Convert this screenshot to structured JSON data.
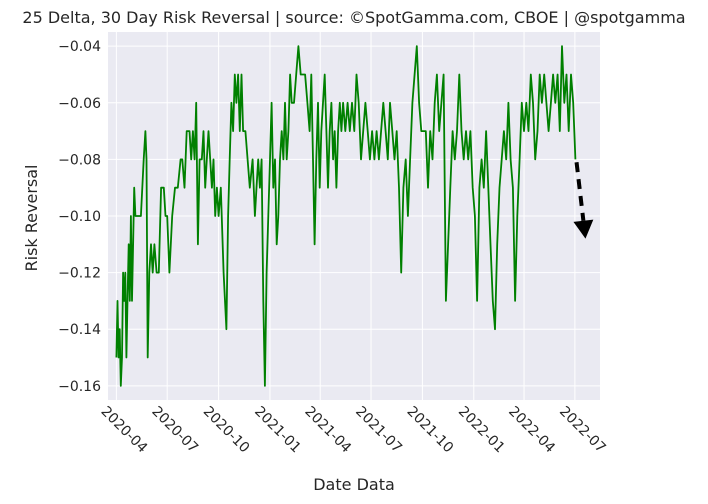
{
  "chart_data": {
    "type": "line",
    "title": "25 Delta, 30 Day Risk Reversal | source: ©SpotGamma.com, CBOE | @spotgamma",
    "xlabel": "Date Data",
    "ylabel": "Risk Reversal",
    "x_ticks": [
      "2020-04",
      "2020-07",
      "2020-10",
      "2021-01",
      "2021-04",
      "2021-07",
      "2021-10",
      "2022-01",
      "2022-04",
      "2022-07"
    ],
    "y_ticks": [
      "−0.04",
      "−0.06",
      "−0.08",
      "−0.10",
      "−0.12",
      "−0.14",
      "−0.16"
    ],
    "xlim": [
      "2020-03-17",
      "2022-08-15"
    ],
    "ylim": [
      -0.165,
      -0.035
    ],
    "grid": true,
    "series": [
      {
        "color": "#008000",
        "points": [
          [
            "2020-04-01",
            -0.15
          ],
          [
            "2020-04-03",
            -0.13
          ],
          [
            "2020-04-05",
            -0.15
          ],
          [
            "2020-04-07",
            -0.14
          ],
          [
            "2020-04-09",
            -0.16
          ],
          [
            "2020-04-11",
            -0.15
          ],
          [
            "2020-04-13",
            -0.12
          ],
          [
            "2020-04-15",
            -0.13
          ],
          [
            "2020-04-17",
            -0.12
          ],
          [
            "2020-04-19",
            -0.15
          ],
          [
            "2020-04-21",
            -0.13
          ],
          [
            "2020-04-23",
            -0.11
          ],
          [
            "2020-04-25",
            -0.13
          ],
          [
            "2020-04-27",
            -0.1
          ],
          [
            "2020-04-29",
            -0.13
          ],
          [
            "2020-05-01",
            -0.11
          ],
          [
            "2020-05-03",
            -0.09
          ],
          [
            "2020-05-05",
            -0.1
          ],
          [
            "2020-05-10",
            -0.1
          ],
          [
            "2020-05-15",
            -0.1
          ],
          [
            "2020-05-20",
            -0.08
          ],
          [
            "2020-05-23",
            -0.07
          ],
          [
            "2020-05-25",
            -0.08
          ],
          [
            "2020-05-27",
            -0.15
          ],
          [
            "2020-05-30",
            -0.12
          ],
          [
            "2020-06-02",
            -0.11
          ],
          [
            "2020-06-05",
            -0.12
          ],
          [
            "2020-06-08",
            -0.11
          ],
          [
            "2020-06-12",
            -0.12
          ],
          [
            "2020-06-16",
            -0.12
          ],
          [
            "2020-06-20",
            -0.09
          ],
          [
            "2020-06-25",
            -0.09
          ],
          [
            "2020-06-28",
            -0.1
          ],
          [
            "2020-07-01",
            -0.1
          ],
          [
            "2020-07-05",
            -0.12
          ],
          [
            "2020-07-10",
            -0.1
          ],
          [
            "2020-07-15",
            -0.09
          ],
          [
            "2020-07-20",
            -0.09
          ],
          [
            "2020-07-25",
            -0.08
          ],
          [
            "2020-07-28",
            -0.08
          ],
          [
            "2020-08-01",
            -0.09
          ],
          [
            "2020-08-05",
            -0.07
          ],
          [
            "2020-08-10",
            -0.07
          ],
          [
            "2020-08-13",
            -0.08
          ],
          [
            "2020-08-16",
            -0.07
          ],
          [
            "2020-08-19",
            -0.08
          ],
          [
            "2020-08-22",
            -0.06
          ],
          [
            "2020-08-25",
            -0.11
          ],
          [
            "2020-08-28",
            -0.08
          ],
          [
            "2020-09-01",
            -0.08
          ],
          [
            "2020-09-04",
            -0.07
          ],
          [
            "2020-09-07",
            -0.09
          ],
          [
            "2020-09-10",
            -0.08
          ],
          [
            "2020-09-13",
            -0.07
          ],
          [
            "2020-09-16",
            -0.08
          ],
          [
            "2020-09-19",
            -0.09
          ],
          [
            "2020-09-22",
            -0.08
          ],
          [
            "2020-09-25",
            -0.1
          ],
          [
            "2020-09-28",
            -0.09
          ],
          [
            "2020-10-01",
            -0.1
          ],
          [
            "2020-10-05",
            -0.09
          ],
          [
            "2020-10-10",
            -0.12
          ],
          [
            "2020-10-15",
            -0.14
          ],
          [
            "2020-10-18",
            -0.1
          ],
          [
            "2020-10-21",
            -0.08
          ],
          [
            "2020-10-24",
            -0.06
          ],
          [
            "2020-10-27",
            -0.07
          ],
          [
            "2020-10-30",
            -0.05
          ],
          [
            "2020-11-02",
            -0.06
          ],
          [
            "2020-11-05",
            -0.05
          ],
          [
            "2020-11-08",
            -0.07
          ],
          [
            "2020-11-11",
            -0.05
          ],
          [
            "2020-11-14",
            -0.07
          ],
          [
            "2020-11-18",
            -0.07
          ],
          [
            "2020-11-22",
            -0.08
          ],
          [
            "2020-11-26",
            -0.09
          ],
          [
            "2020-12-01",
            -0.08
          ],
          [
            "2020-12-05",
            -0.1
          ],
          [
            "2020-12-08",
            -0.09
          ],
          [
            "2020-12-11",
            -0.08
          ],
          [
            "2020-12-14",
            -0.09
          ],
          [
            "2020-12-17",
            -0.08
          ],
          [
            "2020-12-20",
            -0.13
          ],
          [
            "2020-12-23",
            -0.16
          ],
          [
            "2020-12-26",
            -0.12
          ],
          [
            "2020-12-29",
            -0.1
          ],
          [
            "2021-01-01",
            -0.08
          ],
          [
            "2021-01-04",
            -0.06
          ],
          [
            "2021-01-07",
            -0.09
          ],
          [
            "2021-01-10",
            -0.08
          ],
          [
            "2021-01-13",
            -0.11
          ],
          [
            "2021-01-16",
            -0.1
          ],
          [
            "2021-01-19",
            -0.08
          ],
          [
            "2021-01-22",
            -0.07
          ],
          [
            "2021-01-25",
            -0.08
          ],
          [
            "2021-01-28",
            -0.06
          ],
          [
            "2021-01-31",
            -0.08
          ],
          [
            "2021-02-03",
            -0.07
          ],
          [
            "2021-02-06",
            -0.05
          ],
          [
            "2021-02-09",
            -0.06
          ],
          [
            "2021-02-13",
            -0.06
          ],
          [
            "2021-02-17",
            -0.05
          ],
          [
            "2021-02-21",
            -0.04
          ],
          [
            "2021-02-25",
            -0.05
          ],
          [
            "2021-03-01",
            -0.05
          ],
          [
            "2021-03-05",
            -0.05
          ],
          [
            "2021-03-09",
            -0.06
          ],
          [
            "2021-03-13",
            -0.07
          ],
          [
            "2021-03-16",
            -0.05
          ],
          [
            "2021-03-19",
            -0.08
          ],
          [
            "2021-03-22",
            -0.11
          ],
          [
            "2021-03-25",
            -0.08
          ],
          [
            "2021-03-28",
            -0.06
          ],
          [
            "2021-03-31",
            -0.09
          ],
          [
            "2021-04-03",
            -0.07
          ],
          [
            "2021-04-06",
            -0.06
          ],
          [
            "2021-04-09",
            -0.05
          ],
          [
            "2021-04-12",
            -0.07
          ],
          [
            "2021-04-15",
            -0.09
          ],
          [
            "2021-04-18",
            -0.07
          ],
          [
            "2021-04-21",
            -0.06
          ],
          [
            "2021-04-24",
            -0.08
          ],
          [
            "2021-04-27",
            -0.07
          ],
          [
            "2021-04-30",
            -0.09
          ],
          [
            "2021-05-03",
            -0.07
          ],
          [
            "2021-05-06",
            -0.06
          ],
          [
            "2021-05-09",
            -0.07
          ],
          [
            "2021-05-12",
            -0.06
          ],
          [
            "2021-05-16",
            -0.07
          ],
          [
            "2021-05-20",
            -0.06
          ],
          [
            "2021-05-24",
            -0.07
          ],
          [
            "2021-05-28",
            -0.06
          ],
          [
            "2021-06-01",
            -0.07
          ],
          [
            "2021-06-05",
            -0.05
          ],
          [
            "2021-06-09",
            -0.06
          ],
          [
            "2021-06-13",
            -0.08
          ],
          [
            "2021-06-17",
            -0.07
          ],
          [
            "2021-06-21",
            -0.06
          ],
          [
            "2021-06-25",
            -0.07
          ],
          [
            "2021-06-29",
            -0.08
          ],
          [
            "2021-07-03",
            -0.07
          ],
          [
            "2021-07-07",
            -0.08
          ],
          [
            "2021-07-11",
            -0.07
          ],
          [
            "2021-07-15",
            -0.08
          ],
          [
            "2021-07-19",
            -0.07
          ],
          [
            "2021-07-23",
            -0.06
          ],
          [
            "2021-07-27",
            -0.07
          ],
          [
            "2021-07-31",
            -0.08
          ],
          [
            "2021-08-04",
            -0.06
          ],
          [
            "2021-08-08",
            -0.07
          ],
          [
            "2021-08-12",
            -0.08
          ],
          [
            "2021-08-16",
            -0.07
          ],
          [
            "2021-08-20",
            -0.09
          ],
          [
            "2021-08-24",
            -0.12
          ],
          [
            "2021-08-28",
            -0.09
          ],
          [
            "2021-09-01",
            -0.08
          ],
          [
            "2021-09-05",
            -0.1
          ],
          [
            "2021-09-09",
            -0.08
          ],
          [
            "2021-09-13",
            -0.06
          ],
          [
            "2021-09-17",
            -0.05
          ],
          [
            "2021-09-21",
            -0.04
          ],
          [
            "2021-09-25",
            -0.06
          ],
          [
            "2021-09-29",
            -0.07
          ],
          [
            "2021-10-03",
            -0.07
          ],
          [
            "2021-10-07",
            -0.07
          ],
          [
            "2021-10-11",
            -0.09
          ],
          [
            "2021-10-15",
            -0.07
          ],
          [
            "2021-10-19",
            -0.08
          ],
          [
            "2021-10-23",
            -0.06
          ],
          [
            "2021-10-27",
            -0.05
          ],
          [
            "2021-10-31",
            -0.07
          ],
          [
            "2021-11-04",
            -0.06
          ],
          [
            "2021-11-08",
            -0.05
          ],
          [
            "2021-11-12",
            -0.13
          ],
          [
            "2021-11-16",
            -0.11
          ],
          [
            "2021-11-20",
            -0.09
          ],
          [
            "2021-11-24",
            -0.07
          ],
          [
            "2021-11-28",
            -0.08
          ],
          [
            "2021-12-02",
            -0.07
          ],
          [
            "2021-12-06",
            -0.05
          ],
          [
            "2021-12-10",
            -0.07
          ],
          [
            "2021-12-14",
            -0.08
          ],
          [
            "2021-12-18",
            -0.07
          ],
          [
            "2021-12-22",
            -0.08
          ],
          [
            "2021-12-26",
            -0.07
          ],
          [
            "2021-12-30",
            -0.09
          ],
          [
            "2022-01-03",
            -0.1
          ],
          [
            "2022-01-07",
            -0.13
          ],
          [
            "2022-01-11",
            -0.09
          ],
          [
            "2022-01-15",
            -0.08
          ],
          [
            "2022-01-19",
            -0.09
          ],
          [
            "2022-01-23",
            -0.07
          ],
          [
            "2022-01-27",
            -0.09
          ],
          [
            "2022-01-31",
            -0.11
          ],
          [
            "2022-02-04",
            -0.13
          ],
          [
            "2022-02-08",
            -0.14
          ],
          [
            "2022-02-12",
            -0.11
          ],
          [
            "2022-02-16",
            -0.09
          ],
          [
            "2022-02-20",
            -0.08
          ],
          [
            "2022-02-24",
            -0.07
          ],
          [
            "2022-02-28",
            -0.08
          ],
          [
            "2022-03-04",
            -0.06
          ],
          [
            "2022-03-08",
            -0.08
          ],
          [
            "2022-03-12",
            -0.09
          ],
          [
            "2022-03-16",
            -0.13
          ],
          [
            "2022-03-20",
            -0.1
          ],
          [
            "2022-03-24",
            -0.08
          ],
          [
            "2022-03-28",
            -0.06
          ],
          [
            "2022-04-01",
            -0.07
          ],
          [
            "2022-04-05",
            -0.06
          ],
          [
            "2022-04-09",
            -0.07
          ],
          [
            "2022-04-13",
            -0.05
          ],
          [
            "2022-04-17",
            -0.06
          ],
          [
            "2022-04-21",
            -0.08
          ],
          [
            "2022-04-25",
            -0.07
          ],
          [
            "2022-04-29",
            -0.05
          ],
          [
            "2022-05-03",
            -0.06
          ],
          [
            "2022-05-07",
            -0.05
          ],
          [
            "2022-05-11",
            -0.06
          ],
          [
            "2022-05-15",
            -0.07
          ],
          [
            "2022-05-19",
            -0.06
          ],
          [
            "2022-05-23",
            -0.05
          ],
          [
            "2022-05-27",
            -0.06
          ],
          [
            "2022-05-31",
            -0.05
          ],
          [
            "2022-06-04",
            -0.07
          ],
          [
            "2022-06-08",
            -0.04
          ],
          [
            "2022-06-12",
            -0.06
          ],
          [
            "2022-06-16",
            -0.05
          ],
          [
            "2022-06-20",
            -0.07
          ],
          [
            "2022-06-24",
            -0.05
          ],
          [
            "2022-06-28",
            -0.06
          ],
          [
            "2022-07-02",
            -0.08
          ]
        ]
      }
    ],
    "annotation": {
      "type": "dashed-arrow",
      "color": "#000000",
      "from": [
        "2022-07-04",
        -0.081
      ],
      "to": [
        "2022-07-20",
        -0.108
      ]
    }
  }
}
